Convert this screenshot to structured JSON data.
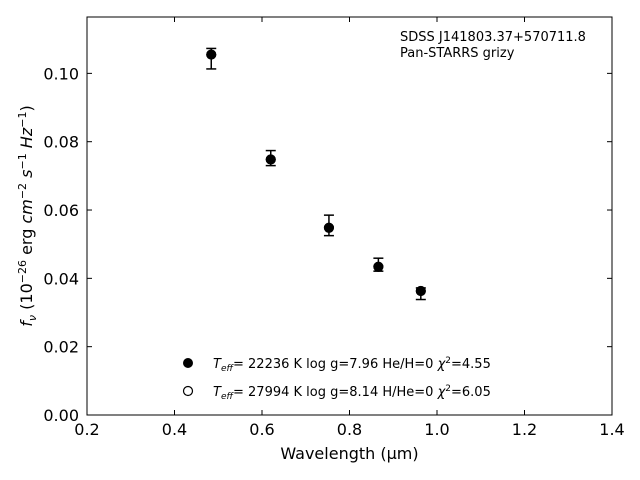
{
  "chart_data": {
    "type": "scatter",
    "title": "",
    "xlabel": "Wavelength (μm)",
    "ylabel": "f_ν (10^-26 erg cm^-2 s^-1 Hz^-1)",
    "xlim": [
      0.2,
      1.4
    ],
    "ylim": [
      0.0,
      0.1165
    ],
    "xticks": [
      "0.2",
      "0.4",
      "0.6",
      "0.8",
      "1.0",
      "1.2",
      "1.4"
    ],
    "yticks": [
      "0.00",
      "0.02",
      "0.04",
      "0.06",
      "0.08",
      "0.10"
    ],
    "grid": false,
    "legend_position": "bottom-center",
    "annotation": {
      "line1": "SDSS J141803.37+570711.8",
      "line2": "Pan-STARRS grizy"
    },
    "series": [
      {
        "name": "Teff= 22236 K  log g=7.96  He/H=0  χ²=4.55",
        "marker": "filled-circle",
        "x": [
          0.484,
          0.62,
          0.753,
          0.866,
          0.963
        ],
        "y": [
          0.1055,
          0.0748,
          0.0548,
          0.0434,
          0.0363
        ]
      },
      {
        "name": "Teff= 27994 K  log g=8.14  H/He=0  χ²=6.05",
        "marker": "open-circle",
        "x": [
          0.484,
          0.62,
          0.753,
          0.866,
          0.963
        ],
        "y": [
          0.1055,
          0.0748,
          0.0548,
          0.0434,
          0.0363
        ]
      }
    ],
    "observed": {
      "marker": "errorbar",
      "x": [
        0.484,
        0.62,
        0.753,
        0.866,
        0.963
      ],
      "y": [
        0.1043,
        0.0752,
        0.0555,
        0.044,
        0.0355
      ],
      "yerr": [
        0.003,
        0.0022,
        0.003,
        0.0019,
        0.0017
      ]
    },
    "legend": [
      {
        "marker": "filled",
        "teff": "22236",
        "params": "= 22236 K  log g=7.96  He/H=0  ",
        "chi": "=4.55"
      },
      {
        "marker": "open",
        "teff": "27994",
        "params": "= 27994 K  log g=8.14  H/He=0  ",
        "chi": "=6.05"
      }
    ]
  }
}
